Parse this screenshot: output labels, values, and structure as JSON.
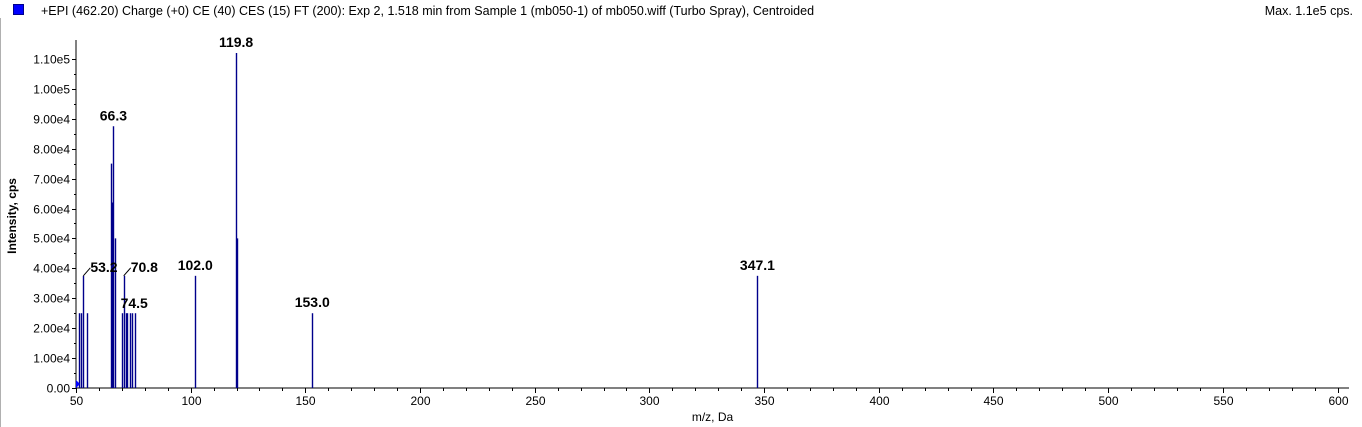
{
  "header": {
    "title": "+EPI (462.20) Charge (+0) CE (40) CES (15) FT (200): Exp 2, 1.518 min from Sample 1 (mb050-1) of mb050.wiff (Turbo Spray), Centroided",
    "max_label": "Max. 1.1e5 cps."
  },
  "chart_data": {
    "type": "bar",
    "xlabel": "m/z, Da",
    "ylabel": "Intensity, cps",
    "xlim": [
      50,
      605
    ],
    "ylim": [
      0,
      115000
    ],
    "x_ticks": [
      50,
      100,
      150,
      200,
      250,
      300,
      350,
      400,
      450,
      500,
      550,
      600
    ],
    "x_tick_labels": [
      "50",
      "100",
      "150",
      "200",
      "250",
      "300",
      "350",
      "400",
      "450",
      "500",
      "550",
      "600"
    ],
    "y_ticks": [
      0,
      10000,
      20000,
      30000,
      40000,
      50000,
      60000,
      70000,
      80000,
      90000,
      100000,
      110000
    ],
    "y_tick_labels": [
      "0.00",
      "1.00e4",
      "2.00e4",
      "3.00e4",
      "4.00e4",
      "5.00e4",
      "6.00e4",
      "7.00e4",
      "8.00e4",
      "9.00e4",
      "1.00e5",
      "1.10e5"
    ],
    "bar_color": "#00008b",
    "peaks": [
      {
        "x": 50.0,
        "y": 2000
      },
      {
        "x": 51.3,
        "y": 25000
      },
      {
        "x": 52.2,
        "y": 25000
      },
      {
        "x": 53.2,
        "y": 37500
      },
      {
        "x": 54.6,
        "y": 25000
      },
      {
        "x": 65.3,
        "y": 75000
      },
      {
        "x": 65.7,
        "y": 62000
      },
      {
        "x": 66.3,
        "y": 87500
      },
      {
        "x": 66.8,
        "y": 50000
      },
      {
        "x": 70.2,
        "y": 25000
      },
      {
        "x": 70.8,
        "y": 37500
      },
      {
        "x": 71.6,
        "y": 25000
      },
      {
        "x": 72.4,
        "y": 25000
      },
      {
        "x": 73.5,
        "y": 25000
      },
      {
        "x": 74.5,
        "y": 25000
      },
      {
        "x": 75.7,
        "y": 25000
      },
      {
        "x": 102.0,
        "y": 37500
      },
      {
        "x": 119.8,
        "y": 112000
      },
      {
        "x": 120.3,
        "y": 50000
      },
      {
        "x": 153.0,
        "y": 25000
      },
      {
        "x": 347.1,
        "y": 37500
      }
    ],
    "labels": [
      {
        "text": "53.2",
        "x": 53.2,
        "y": 37500,
        "leader": true
      },
      {
        "text": "66.3",
        "x": 66.3,
        "y": 87500,
        "leader": false
      },
      {
        "text": "70.8",
        "x": 70.8,
        "y": 37500,
        "leader": true
      },
      {
        "text": "74.5",
        "x": 74.5,
        "y": 25000,
        "leader": false
      },
      {
        "text": "102.0",
        "x": 102.0,
        "y": 37500,
        "leader": false
      },
      {
        "text": "119.8",
        "x": 119.8,
        "y": 112000,
        "leader": false
      },
      {
        "text": "153.0",
        "x": 153.0,
        "y": 25000,
        "leader": false
      },
      {
        "text": "347.1",
        "x": 347.1,
        "y": 37500,
        "leader": false
      }
    ]
  }
}
